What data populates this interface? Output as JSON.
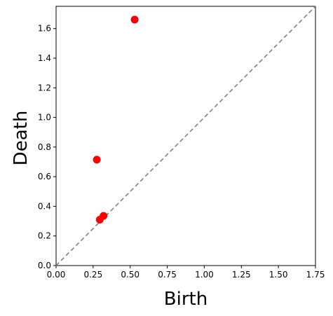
{
  "chart_data": {
    "type": "scatter",
    "title": "",
    "xlabel": "Birth",
    "ylabel": "Death",
    "xlim": [
      0,
      1.75
    ],
    "ylim": [
      0,
      1.75
    ],
    "xticks": [
      "0.00",
      "0.25",
      "0.50",
      "0.75",
      "1.00",
      "1.25",
      "1.50",
      "1.75"
    ],
    "yticks": [
      "0.0",
      "0.2",
      "0.4",
      "0.6",
      "0.8",
      "1.0",
      "1.2",
      "1.4",
      "1.6"
    ],
    "grid": false,
    "diagonal": {
      "style": "dashed",
      "color": "#808080"
    },
    "series": [
      {
        "color": "#ff0000",
        "points": [
          {
            "x": 0.53,
            "y": 1.66
          },
          {
            "x": 0.275,
            "y": 0.715
          },
          {
            "x": 0.32,
            "y": 0.335
          },
          {
            "x": 0.295,
            "y": 0.31
          }
        ]
      }
    ]
  }
}
